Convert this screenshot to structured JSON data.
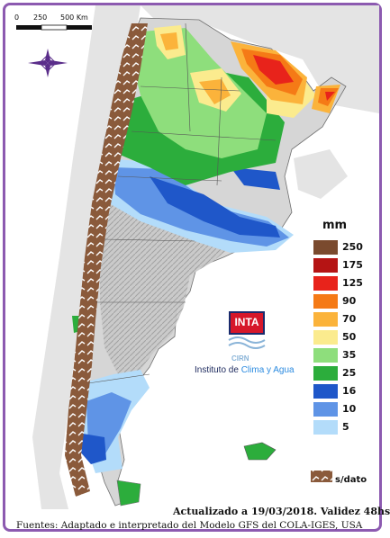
{
  "scale_bar": {
    "ticks": [
      "0",
      "250",
      "500 Km"
    ]
  },
  "legend": {
    "unit": "mm",
    "items": [
      {
        "label": "250",
        "color": "#7a4a2e"
      },
      {
        "label": "175",
        "color": "#b51414"
      },
      {
        "label": "125",
        "color": "#e8231b"
      },
      {
        "label": "90",
        "color": "#f57a16"
      },
      {
        "label": "70",
        "color": "#fbb33b"
      },
      {
        "label": "50",
        "color": "#fbeb8e"
      },
      {
        "label": "35",
        "color": "#8ede7c"
      },
      {
        "label": "25",
        "color": "#2cad3c"
      },
      {
        "label": "16",
        "color": "#1f57c9"
      },
      {
        "label": "10",
        "color": "#5f94e6"
      },
      {
        "label": "5",
        "color": "#b3dcfa"
      }
    ],
    "no_data_label": "s/dato",
    "no_data_color": "#8a5a3b"
  },
  "logo": {
    "brand": "INTA",
    "sub": "CIRN",
    "institute_prefix": "Instituto de ",
    "institute_highlight": "Clima y Agua"
  },
  "footer": {
    "updated": "Actualizado a 19/03/2018. Validez 48hs",
    "sources": "Fuentes: Adaptado e interpretado del Modelo GFS del COLA-IGES, USA"
  },
  "compass_icon": "compass-rose-icon",
  "map_colors": {
    "land": "#dcdcdc",
    "relief": "#a8a8a8",
    "sea": "#ffffff",
    "neighbors": "#e2e2e2"
  }
}
